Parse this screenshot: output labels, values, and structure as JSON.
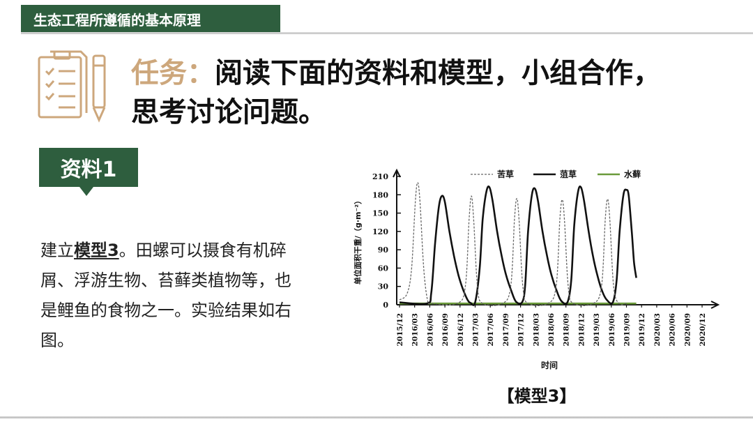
{
  "header": {
    "title": "生态工程所遵循的基本原理"
  },
  "task": {
    "prefix": "任务：",
    "line1": "阅读下面的资料和模型，小组合作，",
    "line2": "思考讨论问题。",
    "icon": "checklist-pen-icon"
  },
  "material": {
    "tag": "资料1",
    "desc_pre": "建立",
    "desc_bold": "模型3",
    "desc_post": "。田螺可以摄食有机碎屑、浮游生物、苔藓类植物等，也是鲤鱼的食物之一。实验结果如右图。"
  },
  "caption": "【模型3】",
  "colors": {
    "accent_green": "#2e5e3e",
    "accent_tan": "#cda77c"
  },
  "chart_data": {
    "type": "line",
    "xlabel": "时间",
    "ylabel": "单位面积干重/（g·m⁻²）",
    "ylim": [
      0,
      210
    ],
    "yticks": [
      0,
      30,
      60,
      90,
      120,
      150,
      180,
      210
    ],
    "categories": [
      "2015/12",
      "2016/03",
      "2016/06",
      "2016/09",
      "2016/12",
      "2017/03",
      "2017/06",
      "2017/09",
      "2017/12",
      "2018/03",
      "2018/06",
      "2018/09",
      "2018/12",
      "2019/03",
      "2019/06",
      "2019/09",
      "2019/12",
      "2020/03",
      "2020/06",
      "2020/09",
      "2020/12"
    ],
    "legend": [
      "苦草",
      "菹草",
      "水藓"
    ],
    "series": [
      {
        "name": "苦草",
        "style": "dashed",
        "color": "#666666",
        "points": [
          [
            0,
            8
          ],
          [
            0.5,
            18
          ],
          [
            0.8,
            60
          ],
          [
            1.05,
            170
          ],
          [
            1.2,
            200
          ],
          [
            1.35,
            170
          ],
          [
            1.6,
            60
          ],
          [
            1.85,
            8
          ],
          [
            2.1,
            2
          ],
          [
            3.8,
            2
          ],
          [
            4.35,
            30
          ],
          [
            4.6,
            140
          ],
          [
            4.75,
            178
          ],
          [
            4.9,
            140
          ],
          [
            5.15,
            30
          ],
          [
            5.5,
            2
          ],
          [
            6.8,
            2
          ],
          [
            7.35,
            30
          ],
          [
            7.6,
            140
          ],
          [
            7.75,
            174
          ],
          [
            7.9,
            140
          ],
          [
            8.15,
            30
          ],
          [
            8.5,
            2
          ],
          [
            9.8,
            2
          ],
          [
            10.35,
            30
          ],
          [
            10.6,
            140
          ],
          [
            10.75,
            172
          ],
          [
            10.9,
            140
          ],
          [
            11.15,
            30
          ],
          [
            11.5,
            2
          ],
          [
            12.8,
            2
          ],
          [
            13.35,
            30
          ],
          [
            13.6,
            140
          ],
          [
            13.75,
            173
          ],
          [
            13.9,
            140
          ],
          [
            14.15,
            30
          ],
          [
            14.5,
            2
          ],
          [
            15,
            2
          ]
        ]
      },
      {
        "name": "菹草",
        "style": "solid",
        "color": "#111111",
        "points": [
          [
            0,
            4
          ],
          [
            1.8,
            2
          ],
          [
            2.1,
            20
          ],
          [
            2.35,
            100
          ],
          [
            2.6,
            160
          ],
          [
            2.8,
            178
          ],
          [
            3,
            168
          ],
          [
            3.3,
            120
          ],
          [
            3.6,
            80
          ],
          [
            3.9,
            48
          ],
          [
            4.2,
            25
          ],
          [
            4.5,
            8
          ],
          [
            4.7,
            3
          ],
          [
            5,
            4
          ],
          [
            5.3,
            60
          ],
          [
            5.5,
            140
          ],
          [
            5.75,
            186
          ],
          [
            5.95,
            192
          ],
          [
            6.15,
            170
          ],
          [
            6.45,
            120
          ],
          [
            6.75,
            80
          ],
          [
            7.05,
            48
          ],
          [
            7.4,
            22
          ],
          [
            7.7,
            5
          ],
          [
            8.1,
            4
          ],
          [
            8.3,
            30
          ],
          [
            8.5,
            120
          ],
          [
            8.75,
            180
          ],
          [
            8.95,
            190
          ],
          [
            9.15,
            170
          ],
          [
            9.45,
            120
          ],
          [
            9.75,
            80
          ],
          [
            10.05,
            48
          ],
          [
            10.4,
            22
          ],
          [
            10.7,
            6
          ],
          [
            11.1,
            4
          ],
          [
            11.35,
            40
          ],
          [
            11.55,
            130
          ],
          [
            11.8,
            185
          ],
          [
            12,
            192
          ],
          [
            12.2,
            170
          ],
          [
            12.5,
            120
          ],
          [
            12.8,
            78
          ],
          [
            13.1,
            46
          ],
          [
            13.4,
            22
          ],
          [
            13.7,
            8
          ],
          [
            14.1,
            4
          ],
          [
            14.35,
            40
          ],
          [
            14.55,
            120
          ],
          [
            14.8,
            180
          ],
          [
            15,
            188
          ],
          [
            15.15,
            178
          ],
          [
            15.35,
            120
          ],
          [
            15.5,
            70
          ],
          [
            15.65,
            44
          ]
        ]
      },
      {
        "name": "水藓",
        "style": "solid",
        "color": "#6a9a3a",
        "points": [
          [
            0,
            2
          ],
          [
            15.65,
            2
          ]
        ]
      }
    ]
  }
}
